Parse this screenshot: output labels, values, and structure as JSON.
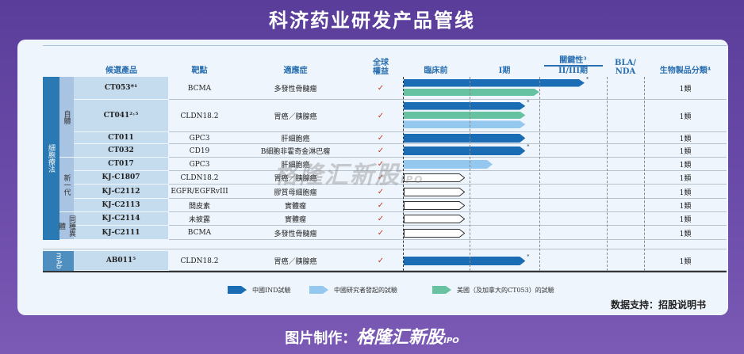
{
  "title": "科济药业研发产品管线",
  "colors": {
    "ind_china": "#1a6db5",
    "iit_china": "#94c8ee",
    "us_trial": "#66c2a0",
    "group": "#2a79b3",
    "subgroup": "#a9c3e3",
    "product": "#c5dcef",
    "header": "#2a6fb0"
  },
  "headers": {
    "product": "候選產品",
    "target": "靶點",
    "indication": "適應症",
    "rights": "全球\n權益",
    "preclinical": "臨床前",
    "phase1": "I期",
    "pivotal": "關鍵性³",
    "phase23": "II/III期",
    "bla": "BLA/\nNDA",
    "class": "生物製品分類⁴"
  },
  "groups": [
    {
      "label": "細胞療法"
    },
    {
      "label": "mAb"
    }
  ],
  "subgroups": [
    {
      "label": "自體"
    },
    {
      "label": "新一代"
    },
    {
      "label": "同種異體"
    }
  ],
  "stages_note": "bar end values in stage units: 0=preclinical start,1=Phase I start,2=II/III start,3=BLA start",
  "rows": [
    {
      "product": "CT053*¹",
      "target": "BCMA",
      "indication": "多發性骨髓瘤",
      "rights": "✓",
      "class": "1類",
      "bars": [
        {
          "type": "ind_china",
          "end": 2.67,
          "star": "*"
        },
        {
          "type": "us_trial",
          "end": 2.0
        }
      ]
    },
    {
      "product": "CT041²˒⁵",
      "target": "CLDN18.2",
      "indication": "胃癌／胰腺癌",
      "rights": "✓",
      "class": "1類",
      "bars": [
        {
          "type": "ind_china",
          "end": 1.8,
          "star": "*"
        },
        {
          "type": "us_trial",
          "end": 1.8
        },
        {
          "type": "iit_china",
          "end": 1.8
        }
      ]
    },
    {
      "product": "CT011",
      "target": "GPC3",
      "indication": "肝細胞癌",
      "rights": "✓",
      "class": "1類",
      "bars": [
        {
          "type": "ind_china",
          "end": 1.8
        }
      ]
    },
    {
      "product": "CT032",
      "target": "CD19",
      "indication": "B細胞非霍奇金淋巴瘤",
      "rights": "✓",
      "class": "1類",
      "bars": [
        {
          "type": "ind_china",
          "end": 1.8,
          "star": "*"
        }
      ]
    },
    {
      "product": "CT017",
      "target": "GPC3",
      "indication": "肝細胞癌",
      "rights": "✓",
      "class": "1類",
      "bars": [
        {
          "type": "iit_china",
          "end": 1.33
        }
      ]
    },
    {
      "product": "KJ-C1807",
      "target": "CLDN18.2",
      "indication": "胃癌／胰腺癌",
      "rights": "✓",
      "class": "1類",
      "bars": [
        {
          "type": "outline",
          "end": 0.93
        }
      ]
    },
    {
      "product": "KJ-C2112",
      "target": "EGFR/EGFRvIII",
      "indication": "膠質母細胞瘤",
      "rights": "✓",
      "class": "1類",
      "bars": [
        {
          "type": "outline",
          "end": 0.93
        }
      ]
    },
    {
      "product": "KJ-C2113",
      "target": "間皮素",
      "indication": "實體瘤",
      "rights": "✓",
      "class": "1類",
      "bars": [
        {
          "type": "outline",
          "end": 0.93
        }
      ]
    },
    {
      "product": "KJ-C2114",
      "target": "未披露",
      "indication": "實體瘤",
      "rights": "✓",
      "class": "1類",
      "bars": [
        {
          "type": "outline",
          "end": 0.93
        }
      ]
    },
    {
      "product": "KJ-C2111",
      "target": "BCMA",
      "indication": "多發性骨髓瘤",
      "rights": "✓",
      "class": "1類",
      "bars": [
        {
          "type": "outline",
          "end": 0.93
        }
      ]
    },
    {
      "product": "AB011⁵",
      "target": "CLDN18.2",
      "indication": "胃癌／胰腺癌",
      "rights": "✓",
      "class": "1類",
      "bars": [
        {
          "type": "ind_china",
          "end": 1.8,
          "star": "*"
        }
      ]
    }
  ],
  "legend": [
    {
      "type": "ind_china",
      "label": "中國IND試驗"
    },
    {
      "type": "iit_china",
      "label": "中國研究者發起的試驗"
    },
    {
      "type": "us_trial",
      "label": "美國（及加拿大的CT053）的試驗"
    }
  ],
  "source": "数据支持：招股说明书",
  "footer": {
    "prefix": "图片制作：",
    "logo": "格隆汇新股",
    "logo_suffix": "IPO"
  },
  "watermark": {
    "text": "格隆汇新股",
    "suffix": "IPO"
  }
}
